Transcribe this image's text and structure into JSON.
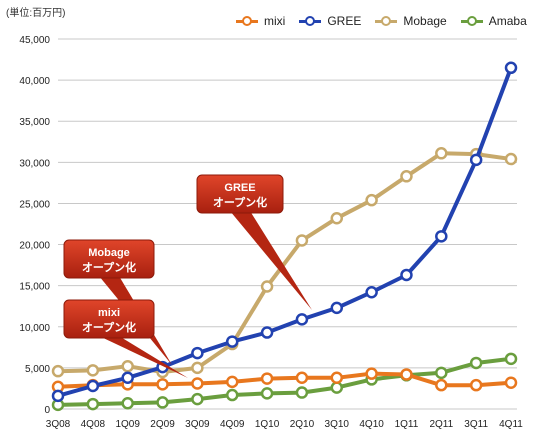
{
  "chart_data": {
    "type": "line",
    "unit_label": "(単位:百万円)",
    "categories": [
      "3Q08",
      "4Q08",
      "1Q09",
      "2Q09",
      "3Q09",
      "4Q09",
      "1Q10",
      "2Q10",
      "3Q10",
      "4Q10",
      "1Q11",
      "2Q11",
      "3Q11",
      "4Q11"
    ],
    "ylim": [
      0,
      45000
    ],
    "yticks": [
      0,
      5000,
      10000,
      15000,
      20000,
      25000,
      30000,
      35000,
      40000,
      45000
    ],
    "ytick_labels": [
      "0",
      "5,000",
      "10,000",
      "15,000",
      "20,000",
      "25,000",
      "30,000",
      "35,000",
      "40,000",
      "45,000"
    ],
    "grid": true,
    "legend_position": "top",
    "series": [
      {
        "name": "mixi",
        "color": "#E8771E",
        "values": [
          2700,
          2900,
          3000,
          3000,
          3100,
          3300,
          3700,
          3800,
          3800,
          4300,
          4200,
          2900,
          2900,
          3200
        ]
      },
      {
        "name": "GREE",
        "color": "#2242B0",
        "values": [
          1600,
          2800,
          3800,
          5100,
          6800,
          8200,
          9300,
          10900,
          12300,
          14200,
          16300,
          21000,
          30300,
          41500
        ]
      },
      {
        "name": "Mobage",
        "color": "#C7A96B",
        "values": [
          4600,
          4700,
          5200,
          4500,
          5000,
          7900,
          14900,
          20500,
          23200,
          25400,
          28300,
          31100,
          31000,
          30400
        ]
      },
      {
        "name": "Amaba",
        "color": "#6A9E3E",
        "values": [
          500,
          600,
          700,
          800,
          1200,
          1700,
          1900,
          2000,
          2600,
          3600,
          4100,
          4400,
          5600,
          6100
        ]
      }
    ],
    "annotations": [
      {
        "line1": "GREE",
        "line2": "オープン化",
        "target_category": "3Q10",
        "target_value": 12400
      },
      {
        "line1": "Mobage",
        "line2": "オープン化",
        "target_category": "3Q09",
        "target_value": 5000
      },
      {
        "line1": "mixi",
        "line2": "オープン化",
        "target_category": "3Q09",
        "target_value": 3100
      }
    ]
  }
}
